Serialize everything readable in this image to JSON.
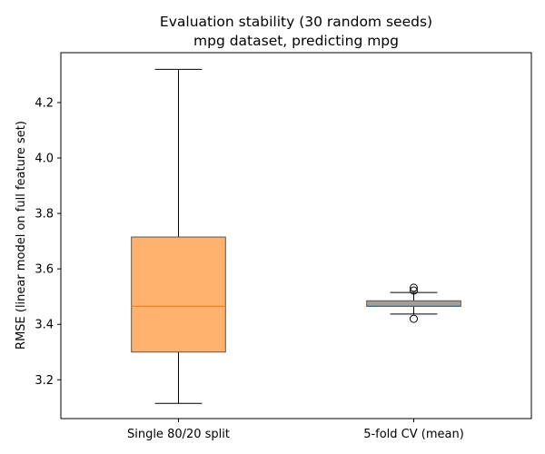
{
  "chart_data": {
    "type": "box",
    "title": "Evaluation stability (30 random seeds)",
    "subtitle": "mpg dataset, predicting mpg",
    "xlabel": "",
    "ylabel": "RMSE  (linear model on full feature set)",
    "ylim": [
      3.06,
      4.38
    ],
    "yticks": [
      3.2,
      3.4,
      3.6,
      3.8,
      4.0,
      4.2
    ],
    "ytick_labels": [
      "3.2",
      "3.4",
      "3.6",
      "3.8",
      "4.0",
      "4.2"
    ],
    "grid": false,
    "categories": [
      "Single 80/20 split",
      "5-fold CV (mean)"
    ],
    "boxes": [
      {
        "category": "Single 80/20 split",
        "whisker_low": 3.115,
        "q1": 3.3,
        "median": 3.465,
        "q3": 3.715,
        "whisker_high": 4.32,
        "outliers": [],
        "box_color": "#ffb26e",
        "median_color": "#f58220"
      },
      {
        "category": "5-fold CV (mean)",
        "whisker_low": 3.437,
        "q1": 3.465,
        "median": 3.465,
        "q3": 3.485,
        "whisker_high": 3.515,
        "outliers": [
          3.42,
          3.522,
          3.532
        ],
        "box_color": "#a39e9b",
        "median_color": "#1f77b4"
      }
    ]
  }
}
